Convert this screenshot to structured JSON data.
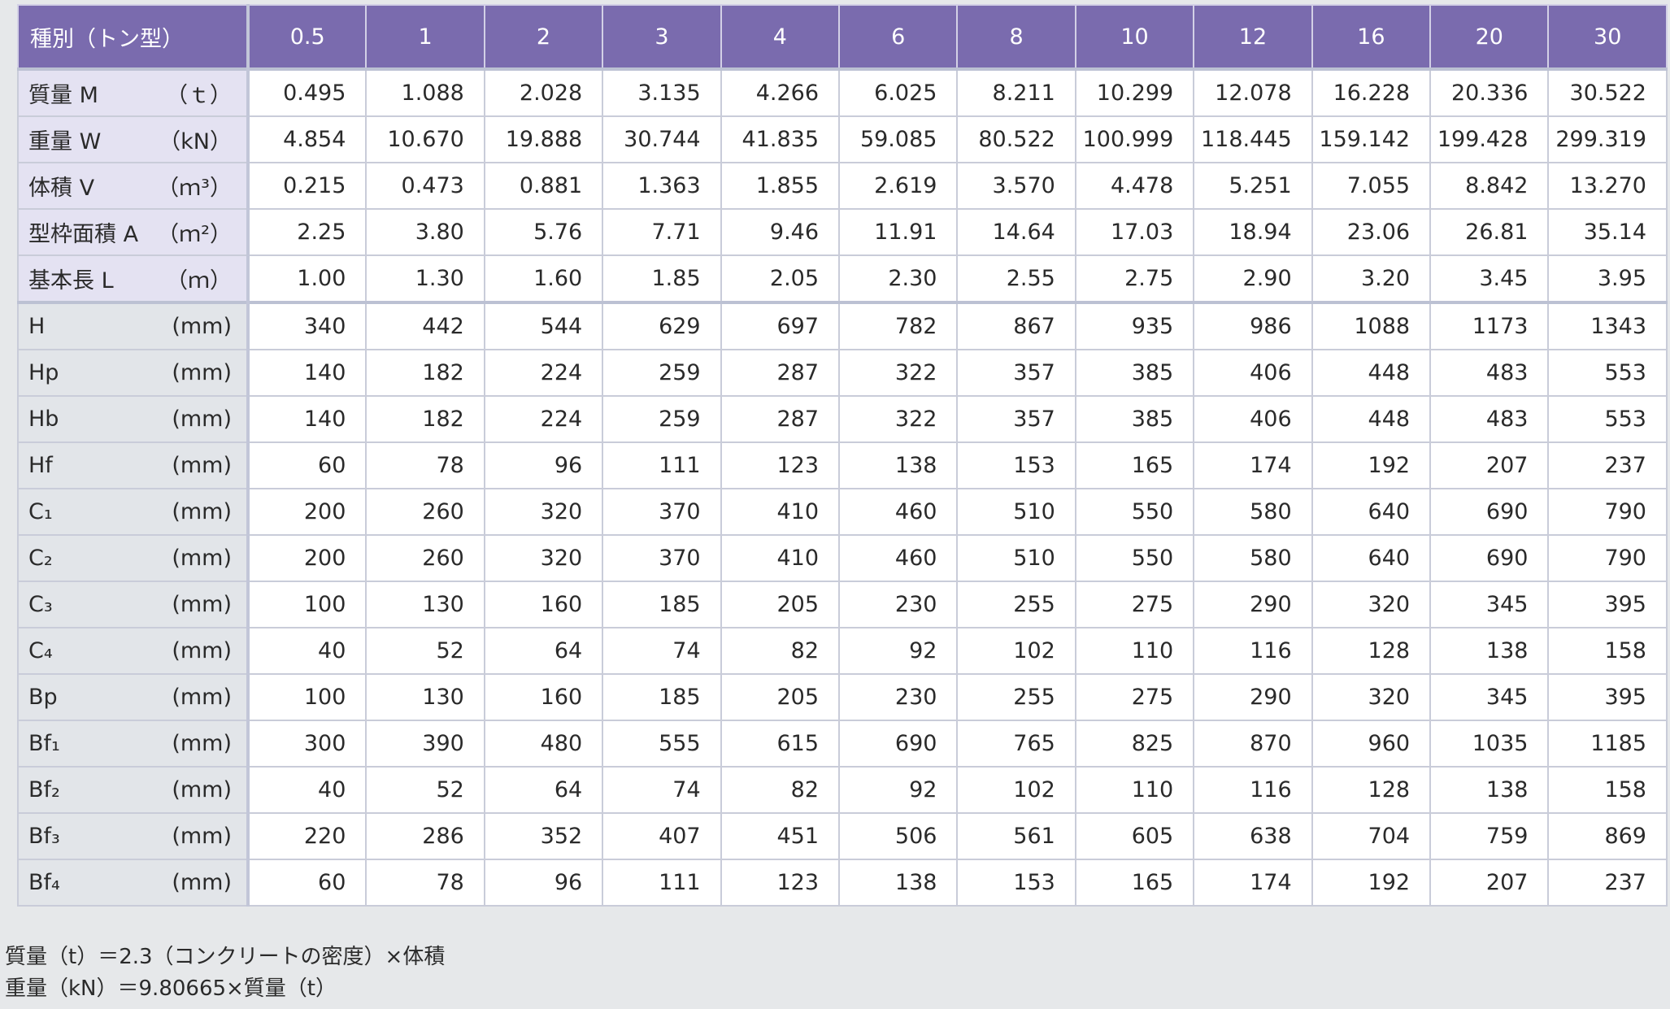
{
  "table": {
    "header": {
      "title": "種別（トン型）",
      "columns": [
        "0.5",
        "1",
        "2",
        "3",
        "4",
        "6",
        "8",
        "10",
        "12",
        "16",
        "20",
        "30"
      ]
    },
    "rows": [
      {
        "label": "質量 M",
        "unit": "（ｔ）",
        "values": [
          "0.495",
          "1.088",
          "2.028",
          "3.135",
          "4.266",
          "6.025",
          "8.211",
          "10.299",
          "12.078",
          "16.228",
          "20.336",
          "30.522"
        ]
      },
      {
        "label": "重量 W",
        "unit": "（kN）",
        "values": [
          "4.854",
          "10.670",
          "19.888",
          "30.744",
          "41.835",
          "59.085",
          "80.522",
          "100.999",
          "118.445",
          "159.142",
          "199.428",
          "299.319"
        ]
      },
      {
        "label": "体積 V",
        "unit": "（ｍ³）",
        "values": [
          "0.215",
          "0.473",
          "0.881",
          "1.363",
          "1.855",
          "2.619",
          "3.570",
          "4.478",
          "5.251",
          "7.055",
          "8.842",
          "13.270"
        ]
      },
      {
        "label": "型枠面積 A",
        "unit": "（ｍ²）",
        "values": [
          "2.25",
          "3.80",
          "5.76",
          "7.71",
          "9.46",
          "11.91",
          "14.64",
          "17.03",
          "18.94",
          "23.06",
          "26.81",
          "35.14"
        ]
      },
      {
        "label": "基本長 L",
        "unit": "（ｍ）",
        "values": [
          "1.00",
          "1.30",
          "1.60",
          "1.85",
          "2.05",
          "2.30",
          "2.55",
          "2.75",
          "2.90",
          "3.20",
          "3.45",
          "3.95"
        ]
      },
      {
        "label": "H",
        "unit": "(mm)",
        "values": [
          "340",
          "442",
          "544",
          "629",
          "697",
          "782",
          "867",
          "935",
          "986",
          "1088",
          "1173",
          "1343"
        ]
      },
      {
        "label": "Hp",
        "unit": "(mm)",
        "values": [
          "140",
          "182",
          "224",
          "259",
          "287",
          "322",
          "357",
          "385",
          "406",
          "448",
          "483",
          "553"
        ]
      },
      {
        "label": "Hb",
        "unit": "(mm)",
        "values": [
          "140",
          "182",
          "224",
          "259",
          "287",
          "322",
          "357",
          "385",
          "406",
          "448",
          "483",
          "553"
        ]
      },
      {
        "label": "Hf",
        "unit": "(mm)",
        "values": [
          "60",
          "78",
          "96",
          "111",
          "123",
          "138",
          "153",
          "165",
          "174",
          "192",
          "207",
          "237"
        ]
      },
      {
        "label": "C₁",
        "unit": "(mm)",
        "values": [
          "200",
          "260",
          "320",
          "370",
          "410",
          "460",
          "510",
          "550",
          "580",
          "640",
          "690",
          "790"
        ]
      },
      {
        "label": "C₂",
        "unit": "(mm)",
        "values": [
          "200",
          "260",
          "320",
          "370",
          "410",
          "460",
          "510",
          "550",
          "580",
          "640",
          "690",
          "790"
        ]
      },
      {
        "label": "C₃",
        "unit": "(mm)",
        "values": [
          "100",
          "130",
          "160",
          "185",
          "205",
          "230",
          "255",
          "275",
          "290",
          "320",
          "345",
          "395"
        ]
      },
      {
        "label": "C₄",
        "unit": "(mm)",
        "values": [
          "40",
          "52",
          "64",
          "74",
          "82",
          "92",
          "102",
          "110",
          "116",
          "128",
          "138",
          "158"
        ]
      },
      {
        "label": "Bp",
        "unit": "(mm)",
        "values": [
          "100",
          "130",
          "160",
          "185",
          "205",
          "230",
          "255",
          "275",
          "290",
          "320",
          "345",
          "395"
        ]
      },
      {
        "label": "Bf₁",
        "unit": "(mm)",
        "values": [
          "300",
          "390",
          "480",
          "555",
          "615",
          "690",
          "765",
          "825",
          "870",
          "960",
          "1035",
          "1185"
        ]
      },
      {
        "label": "Bf₂",
        "unit": "(mm)",
        "values": [
          "40",
          "52",
          "64",
          "74",
          "82",
          "92",
          "102",
          "110",
          "116",
          "128",
          "138",
          "158"
        ]
      },
      {
        "label": "Bf₃",
        "unit": "(mm)",
        "values": [
          "220",
          "286",
          "352",
          "407",
          "451",
          "506",
          "561",
          "605",
          "638",
          "704",
          "759",
          "869"
        ]
      },
      {
        "label": "Bf₄",
        "unit": "(mm)",
        "values": [
          "60",
          "78",
          "96",
          "111",
          "123",
          "138",
          "153",
          "165",
          "174",
          "192",
          "207",
          "237"
        ]
      }
    ]
  },
  "notes": [
    "質量（t）＝2.3（コンクリートの密度）×体積",
    "重量（kN）＝9.80665×質量（t）"
  ]
}
